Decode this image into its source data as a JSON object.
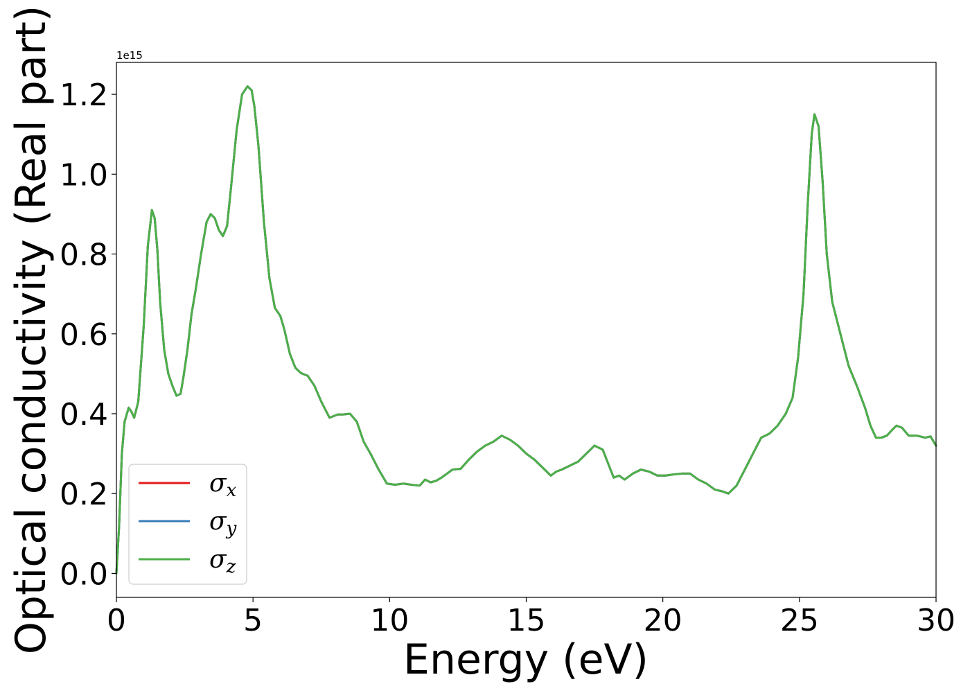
{
  "chart_data": {
    "type": "line",
    "xlabel": "Energy (eV)",
    "ylabel": "Optical conductivity (Real part)",
    "y_offset_label": "1e15",
    "xlim": [
      0,
      30
    ],
    "ylim": [
      -0.06,
      1.28
    ],
    "xticks": [
      0,
      5,
      10,
      15,
      20,
      25,
      30
    ],
    "xtick_labels": [
      "0",
      "5",
      "10",
      "15",
      "20",
      "25",
      "30"
    ],
    "yticks": [
      0.0,
      0.2,
      0.4,
      0.6,
      0.8,
      1.0,
      1.2
    ],
    "ytick_labels": [
      "0.0",
      "0.2",
      "0.4",
      "0.6",
      "0.8",
      "1.0",
      "1.2"
    ],
    "grid": false,
    "legend_position": "lower-left",
    "x": [
      0,
      0.1,
      0.2,
      0.3,
      0.45,
      0.55,
      0.65,
      0.8,
      1.0,
      1.15,
      1.3,
      1.4,
      1.5,
      1.6,
      1.75,
      1.9,
      2.05,
      2.2,
      2.35,
      2.45,
      2.6,
      2.75,
      2.9,
      3.1,
      3.3,
      3.45,
      3.6,
      3.75,
      3.9,
      4.05,
      4.2,
      4.4,
      4.6,
      4.8,
      4.95,
      5.05,
      5.2,
      5.4,
      5.6,
      5.8,
      6.0,
      6.15,
      6.35,
      6.55,
      6.75,
      7.0,
      7.25,
      7.5,
      7.8,
      8.1,
      8.3,
      8.55,
      8.8,
      9.05,
      9.3,
      9.6,
      9.9,
      10.2,
      10.5,
      10.8,
      11.1,
      11.3,
      11.5,
      11.7,
      11.9,
      12.1,
      12.3,
      12.6,
      12.9,
      13.2,
      13.5,
      13.8,
      14.1,
      14.4,
      14.7,
      15.0,
      15.3,
      15.6,
      15.9,
      16.1,
      16.3,
      16.6,
      16.9,
      17.2,
      17.5,
      17.8,
      18.0,
      18.2,
      18.4,
      18.6,
      18.9,
      19.2,
      19.5,
      19.8,
      20.1,
      20.4,
      20.7,
      21.0,
      21.3,
      21.6,
      21.9,
      22.2,
      22.4,
      22.7,
      23.0,
      23.3,
      23.6,
      23.9,
      24.2,
      24.5,
      24.75,
      24.95,
      25.15,
      25.3,
      25.45,
      25.55,
      25.7,
      25.85,
      26.0,
      26.2,
      26.5,
      26.8,
      27.1,
      27.4,
      27.6,
      27.8,
      28.0,
      28.2,
      28.4,
      28.55,
      28.75,
      29.0,
      29.3,
      29.6,
      29.8,
      30.0
    ],
    "series": [
      {
        "name": "σx",
        "color": "#e41a1c",
        "y": [
          0.0,
          0.12,
          0.3,
          0.38,
          0.415,
          0.405,
          0.39,
          0.43,
          0.62,
          0.82,
          0.91,
          0.89,
          0.81,
          0.68,
          0.56,
          0.5,
          0.47,
          0.445,
          0.45,
          0.49,
          0.56,
          0.65,
          0.71,
          0.8,
          0.88,
          0.9,
          0.89,
          0.86,
          0.845,
          0.87,
          0.97,
          1.11,
          1.2,
          1.22,
          1.21,
          1.17,
          1.07,
          0.88,
          0.74,
          0.665,
          0.645,
          0.61,
          0.55,
          0.515,
          0.502,
          0.495,
          0.47,
          0.43,
          0.39,
          0.398,
          0.398,
          0.4,
          0.38,
          0.33,
          0.3,
          0.26,
          0.225,
          0.222,
          0.225,
          0.222,
          0.22,
          0.235,
          0.228,
          0.232,
          0.24,
          0.25,
          0.26,
          0.262,
          0.285,
          0.305,
          0.32,
          0.33,
          0.345,
          0.335,
          0.32,
          0.3,
          0.285,
          0.265,
          0.245,
          0.255,
          0.26,
          0.27,
          0.28,
          0.3,
          0.32,
          0.31,
          0.275,
          0.24,
          0.245,
          0.235,
          0.25,
          0.26,
          0.255,
          0.245,
          0.245,
          0.248,
          0.25,
          0.25,
          0.235,
          0.225,
          0.21,
          0.205,
          0.2,
          0.22,
          0.26,
          0.3,
          0.34,
          0.35,
          0.37,
          0.4,
          0.44,
          0.54,
          0.7,
          0.92,
          1.1,
          1.15,
          1.12,
          0.98,
          0.8,
          0.68,
          0.6,
          0.52,
          0.47,
          0.415,
          0.37,
          0.34,
          0.34,
          0.345,
          0.36,
          0.37,
          0.365,
          0.345,
          0.345,
          0.34,
          0.343,
          0.32
        ]
      },
      {
        "name": "σy",
        "color": "#377eb8",
        "y": [
          0.0,
          0.12,
          0.3,
          0.38,
          0.415,
          0.405,
          0.39,
          0.43,
          0.62,
          0.82,
          0.91,
          0.89,
          0.81,
          0.68,
          0.56,
          0.5,
          0.47,
          0.445,
          0.45,
          0.49,
          0.56,
          0.65,
          0.71,
          0.8,
          0.88,
          0.9,
          0.89,
          0.86,
          0.845,
          0.87,
          0.97,
          1.11,
          1.2,
          1.22,
          1.21,
          1.17,
          1.07,
          0.88,
          0.74,
          0.665,
          0.645,
          0.61,
          0.55,
          0.515,
          0.502,
          0.495,
          0.47,
          0.43,
          0.39,
          0.398,
          0.398,
          0.4,
          0.38,
          0.33,
          0.3,
          0.26,
          0.225,
          0.222,
          0.225,
          0.222,
          0.22,
          0.235,
          0.228,
          0.232,
          0.24,
          0.25,
          0.26,
          0.262,
          0.285,
          0.305,
          0.32,
          0.33,
          0.345,
          0.335,
          0.32,
          0.3,
          0.285,
          0.265,
          0.245,
          0.255,
          0.26,
          0.27,
          0.28,
          0.3,
          0.32,
          0.31,
          0.275,
          0.24,
          0.245,
          0.235,
          0.25,
          0.26,
          0.255,
          0.245,
          0.245,
          0.248,
          0.25,
          0.25,
          0.235,
          0.225,
          0.21,
          0.205,
          0.2,
          0.22,
          0.26,
          0.3,
          0.34,
          0.35,
          0.37,
          0.4,
          0.44,
          0.54,
          0.7,
          0.92,
          1.1,
          1.15,
          1.12,
          0.98,
          0.8,
          0.68,
          0.6,
          0.52,
          0.47,
          0.415,
          0.37,
          0.34,
          0.34,
          0.345,
          0.36,
          0.37,
          0.365,
          0.345,
          0.345,
          0.34,
          0.343,
          0.32
        ]
      },
      {
        "name": "σz",
        "color": "#4daf4a",
        "y": [
          0.0,
          0.12,
          0.3,
          0.38,
          0.415,
          0.405,
          0.39,
          0.43,
          0.62,
          0.82,
          0.91,
          0.89,
          0.81,
          0.68,
          0.56,
          0.5,
          0.47,
          0.445,
          0.45,
          0.49,
          0.56,
          0.65,
          0.71,
          0.8,
          0.88,
          0.9,
          0.89,
          0.86,
          0.845,
          0.87,
          0.97,
          1.11,
          1.2,
          1.22,
          1.21,
          1.17,
          1.07,
          0.88,
          0.74,
          0.665,
          0.645,
          0.61,
          0.55,
          0.515,
          0.502,
          0.495,
          0.47,
          0.43,
          0.39,
          0.398,
          0.398,
          0.4,
          0.38,
          0.33,
          0.3,
          0.26,
          0.225,
          0.222,
          0.225,
          0.222,
          0.22,
          0.235,
          0.228,
          0.232,
          0.24,
          0.25,
          0.26,
          0.262,
          0.285,
          0.305,
          0.32,
          0.33,
          0.345,
          0.335,
          0.32,
          0.3,
          0.285,
          0.265,
          0.245,
          0.255,
          0.26,
          0.27,
          0.28,
          0.3,
          0.32,
          0.31,
          0.275,
          0.24,
          0.245,
          0.235,
          0.25,
          0.26,
          0.255,
          0.245,
          0.245,
          0.248,
          0.25,
          0.25,
          0.235,
          0.225,
          0.21,
          0.205,
          0.2,
          0.22,
          0.26,
          0.3,
          0.34,
          0.35,
          0.37,
          0.4,
          0.44,
          0.54,
          0.7,
          0.92,
          1.1,
          1.15,
          1.12,
          0.98,
          0.8,
          0.68,
          0.6,
          0.52,
          0.47,
          0.415,
          0.37,
          0.34,
          0.34,
          0.345,
          0.36,
          0.37,
          0.365,
          0.345,
          0.345,
          0.34,
          0.343,
          0.32
        ]
      }
    ],
    "legend": [
      {
        "symbol": "σ",
        "sub": "x",
        "color": "#e41a1c"
      },
      {
        "symbol": "σ",
        "sub": "y",
        "color": "#377eb8"
      },
      {
        "symbol": "σ",
        "sub": "z",
        "color": "#4daf4a"
      }
    ]
  }
}
